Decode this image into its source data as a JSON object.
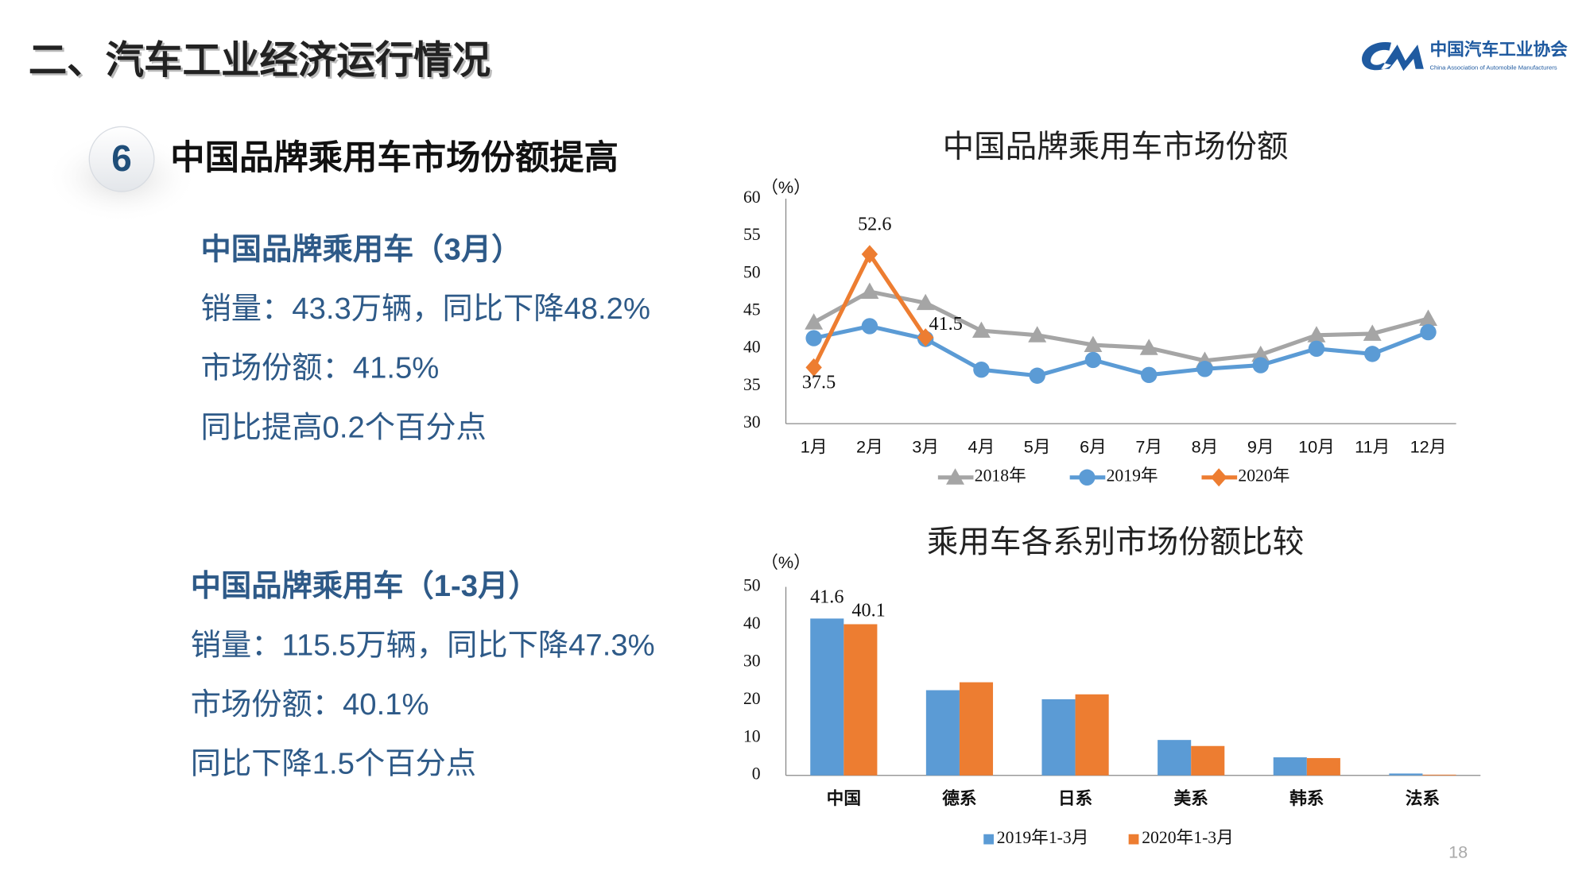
{
  "slide": {
    "title": "二、汽车工业经济运行情况",
    "logo": {
      "name": "中国汽车工业协会",
      "subtitle": "China Association of Automobile Manufacturers"
    },
    "section": {
      "number": "6",
      "heading": "中国品牌乘用车市场份额提高"
    },
    "blocks": [
      {
        "title": "中国品牌乘用车（3月）",
        "lines": [
          "销量：43.3万辆，同比下降48.2%",
          "市场份额：41.5%",
          "同比提高0.2个百分点"
        ]
      },
      {
        "title": "中国品牌乘用车（1-3月）",
        "lines": [
          "销量：115.5万辆，同比下降47.3%",
          "市场份额：40.1%",
          "同比下降1.5个百分点"
        ]
      }
    ],
    "page_number": "18"
  },
  "chart_data": [
    {
      "type": "line",
      "title": "中国品牌乘用车市场份额",
      "y_unit": "（%）",
      "categories": [
        "1月",
        "2月",
        "3月",
        "4月",
        "5月",
        "6月",
        "7月",
        "8月",
        "9月",
        "10月",
        "11月",
        "12月"
      ],
      "ylim": [
        30,
        60
      ],
      "yticks": [
        30,
        35,
        40,
        45,
        50,
        55,
        60
      ],
      "series": [
        {
          "name": "2018年",
          "color": "#a5a5a5",
          "marker": "triangle",
          "values": [
            43.5,
            47.6,
            46.1,
            42.4,
            41.8,
            40.5,
            40.1,
            38.4,
            39.2,
            41.8,
            42.0,
            44.0
          ]
        },
        {
          "name": "2019年",
          "color": "#5b9bd5",
          "marker": "circle",
          "values": [
            41.4,
            43.0,
            41.3,
            37.2,
            36.4,
            38.5,
            36.5,
            37.3,
            37.8,
            40.0,
            39.3,
            42.2
          ]
        },
        {
          "name": "2020年",
          "color": "#ed7d31",
          "marker": "diamond",
          "values": [
            37.5,
            52.6,
            41.5,
            null,
            null,
            null,
            null,
            null,
            null,
            null,
            null,
            null
          ]
        }
      ]
    },
    {
      "type": "bar",
      "title": "乘用车各系别市场份额比较",
      "y_unit": "（%）",
      "categories": [
        "中国",
        "德系",
        "日系",
        "美系",
        "韩系",
        "法系"
      ],
      "ylim": [
        0,
        50
      ],
      "yticks": [
        0,
        10,
        20,
        30,
        40,
        50
      ],
      "series": [
        {
          "name": "2019年1-3月",
          "color": "#5b9bd5",
          "values": [
            41.6,
            22.6,
            20.2,
            9.4,
            4.8,
            0.5
          ]
        },
        {
          "name": "2020年1-3月",
          "color": "#ed7d31",
          "values": [
            40.1,
            24.7,
            21.5,
            7.8,
            4.6,
            0.2
          ]
        }
      ]
    }
  ]
}
